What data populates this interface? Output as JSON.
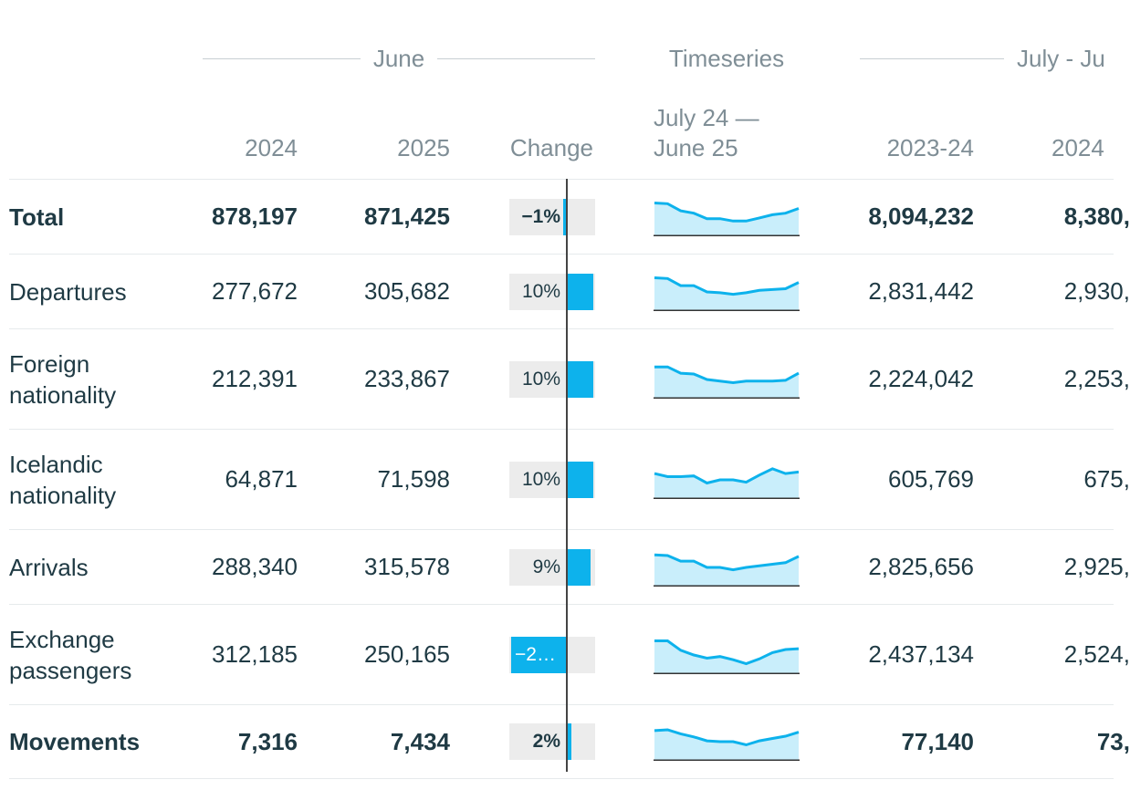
{
  "groups": {
    "june": "June",
    "timeseries": "Timeseries",
    "period": "July - Ju"
  },
  "columns": {
    "y2024": "2024",
    "y2025": "2025",
    "change": "Change",
    "timeseries_line1": "July 24 —",
    "timeseries_line2": "June 25",
    "p2023_24": "2023-24",
    "p2024_25": "2024"
  },
  "colors": {
    "accent": "#0db2ec",
    "spark_fill": "#c9eefb",
    "text": "#1f3a44",
    "muted": "#7f8e96"
  },
  "rows": [
    {
      "label": "Total",
      "bold": true,
      "v2024": "878,197",
      "v2025": "871,425",
      "change_text": "−1%",
      "change_pct": -1,
      "v2023_24": "8,094,232",
      "v2024_25": "8,380,",
      "spark": [
        40,
        39,
        30,
        27,
        20,
        20,
        17,
        17,
        21,
        25,
        27,
        33
      ]
    },
    {
      "label": "Departures",
      "bold": false,
      "v2024": "277,672",
      "v2025": "305,682",
      "change_text": "10%",
      "change_pct": 10,
      "v2023_24": "2,831,442",
      "v2024_25": "2,930,",
      "spark": [
        40,
        39,
        30,
        30,
        22,
        21,
        19,
        21,
        24,
        25,
        26,
        34
      ]
    },
    {
      "label": "Foreign nationality",
      "bold": false,
      "v2024": "212,391",
      "v2025": "233,867",
      "change_text": "10%",
      "change_pct": 10,
      "v2023_24": "2,224,042",
      "v2024_25": "2,253,",
      "spark": [
        38,
        38,
        30,
        29,
        22,
        20,
        18,
        20,
        20,
        20,
        21,
        30
      ]
    },
    {
      "label": "Icelandic nationality",
      "bold": false,
      "v2024": "64,871",
      "v2025": "71,598",
      "change_text": "10%",
      "change_pct": 10,
      "v2023_24": "605,769",
      "v2024_25": "675,",
      "spark": [
        30,
        26,
        26,
        27,
        18,
        22,
        22,
        19,
        28,
        36,
        30,
        32
      ]
    },
    {
      "label": "Arrivals",
      "bold": false,
      "v2024": "288,340",
      "v2025": "315,578",
      "change_text": "9%",
      "change_pct": 9,
      "v2023_24": "2,825,656",
      "v2024_25": "2,925,",
      "spark": [
        38,
        37,
        30,
        30,
        22,
        22,
        19,
        22,
        24,
        26,
        28,
        36
      ]
    },
    {
      "label": "Exchange passengers",
      "bold": false,
      "v2024": "312,185",
      "v2025": "250,165",
      "change_text": "−2…",
      "change_pct": -20,
      "v2023_24": "2,437,134",
      "v2024_25": "2,524,",
      "spark": [
        40,
        40,
        28,
        22,
        18,
        20,
        16,
        11,
        17,
        25,
        29,
        30
      ]
    },
    {
      "label": "Movements",
      "bold": true,
      "v2024": "7,316",
      "v2025": "7,434",
      "change_text": "2%",
      "change_pct": 2,
      "v2023_24": "77,140",
      "v2024_25": "73,",
      "spark": [
        36,
        37,
        32,
        28,
        23,
        22,
        22,
        18,
        23,
        26,
        29,
        34
      ]
    }
  ]
}
